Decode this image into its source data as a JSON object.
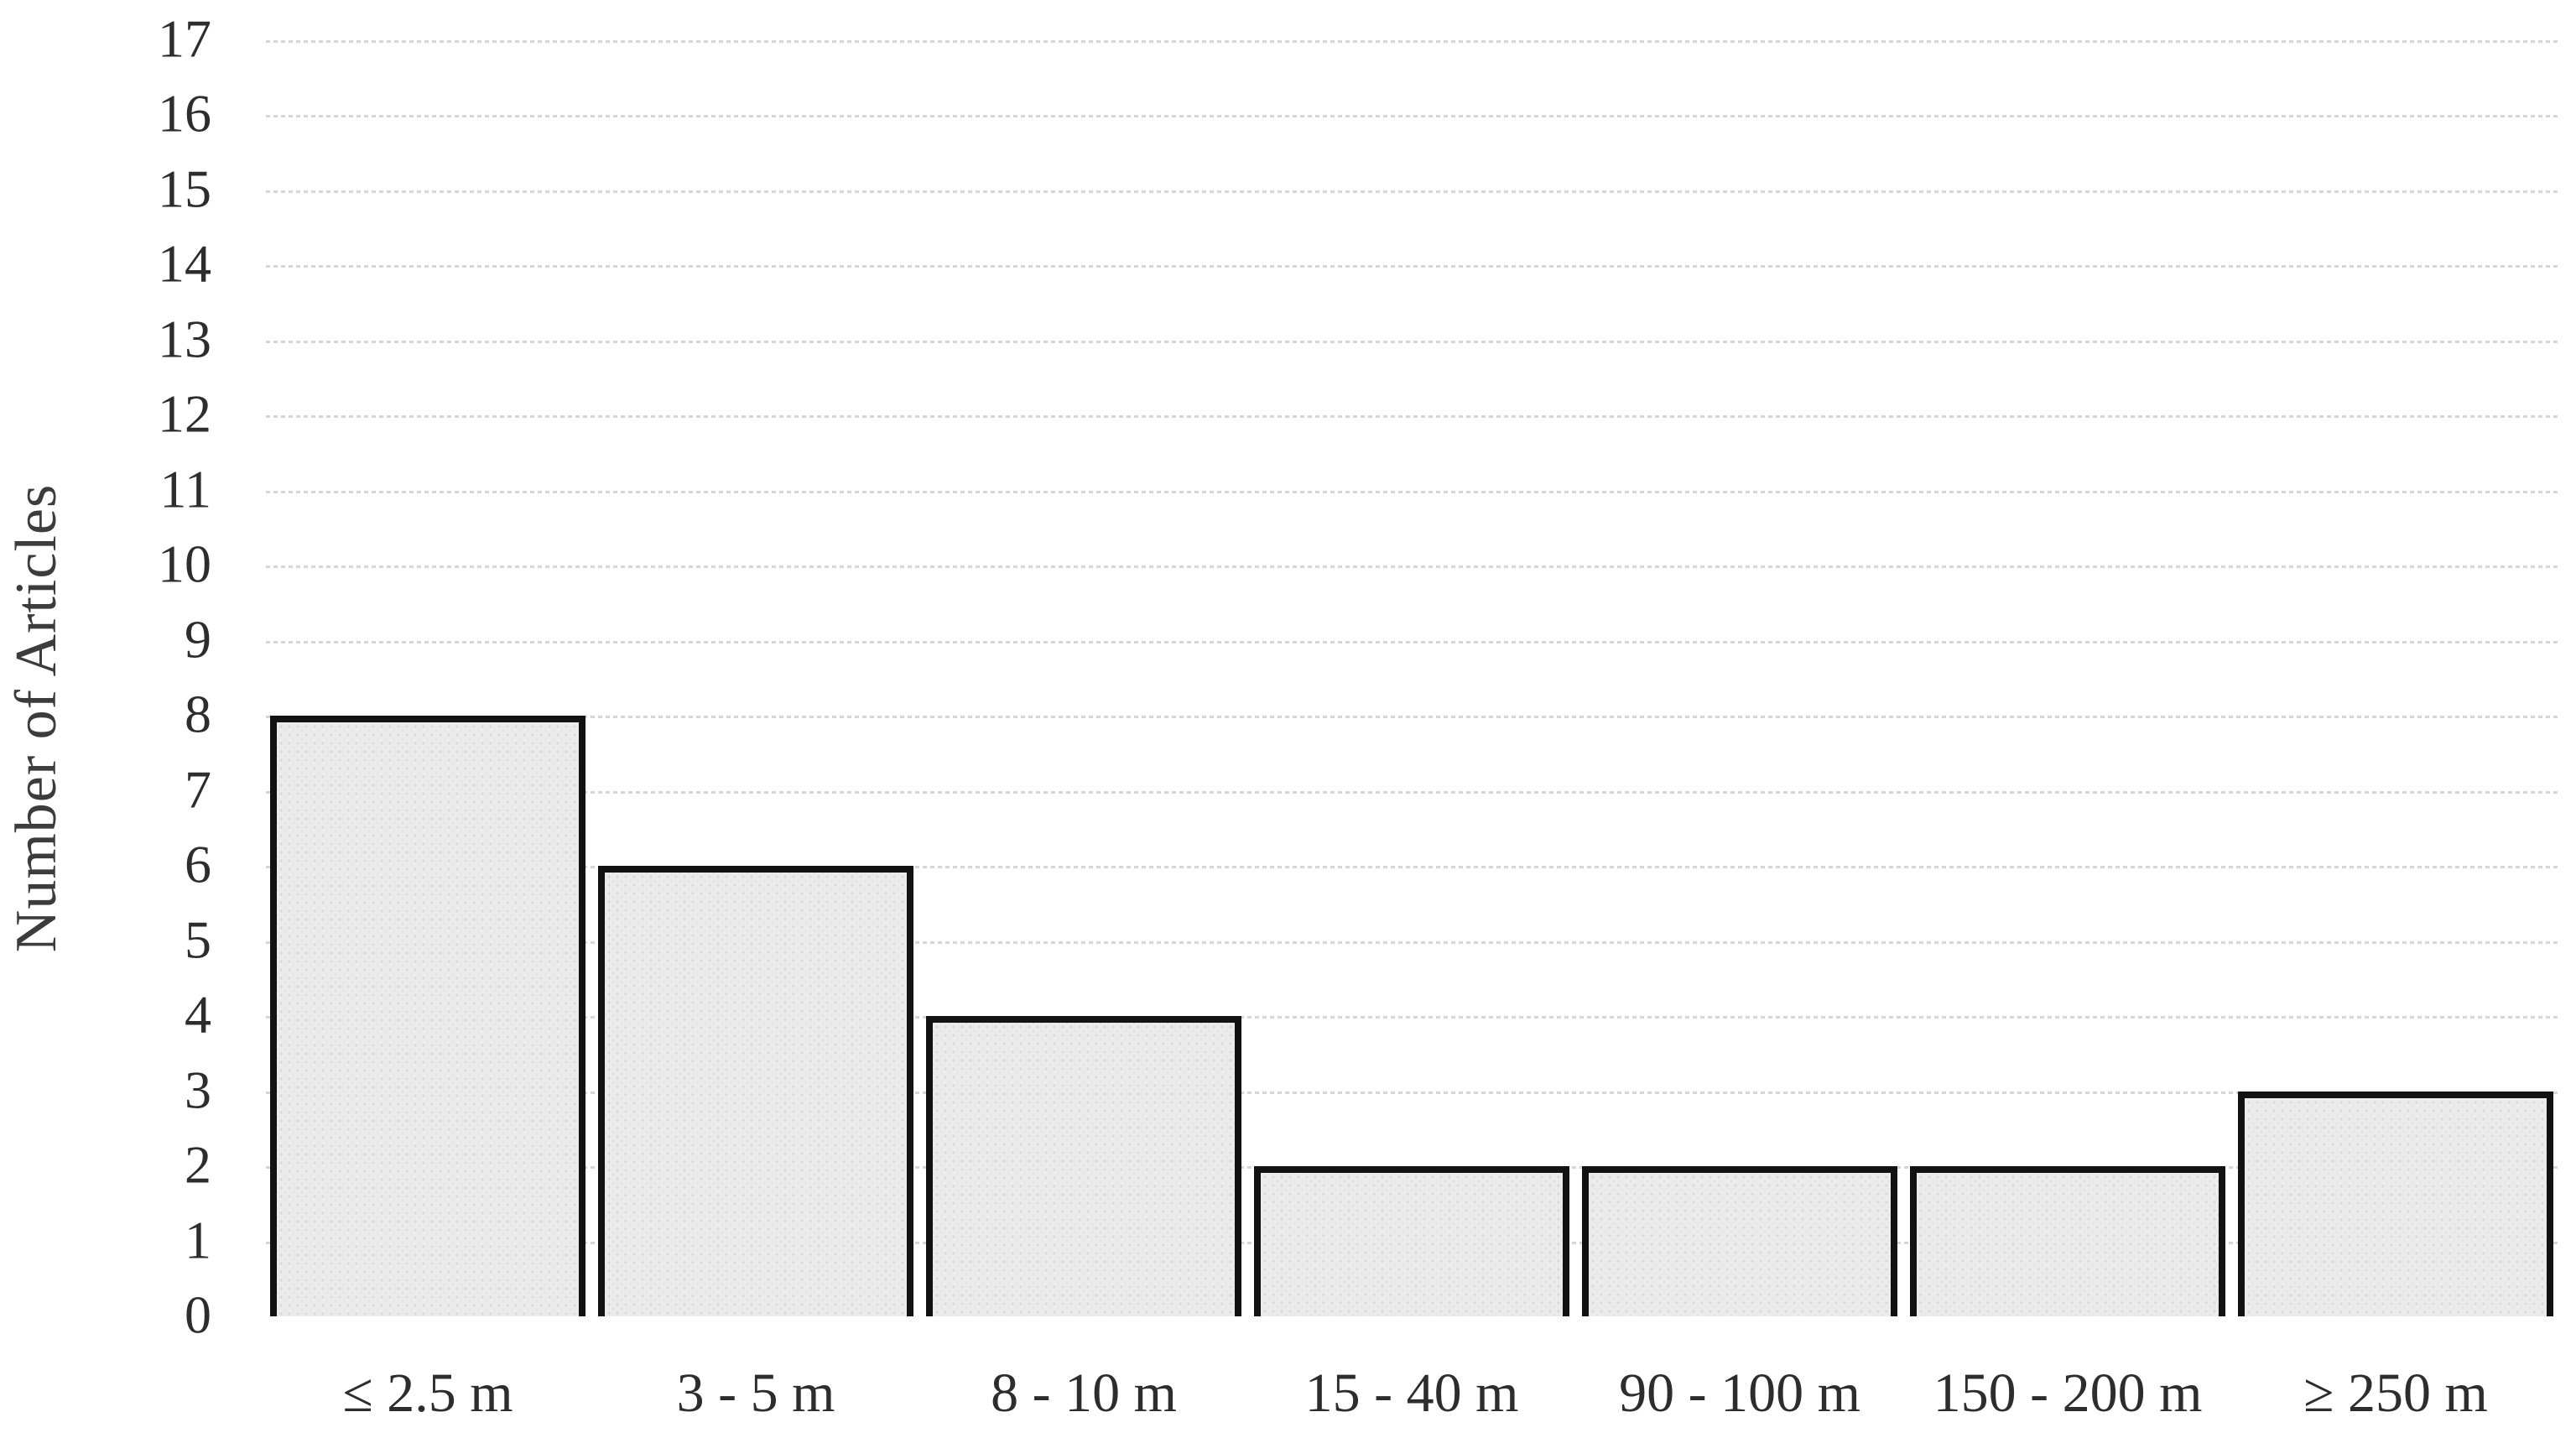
{
  "chart_data": {
    "type": "bar",
    "title": "",
    "xlabel": "",
    "ylabel": "Number of Articles",
    "categories": [
      "≤ 2.5 m",
      "3 - 5 m",
      "8 - 10 m",
      "15 - 40 m",
      "90 - 100 m",
      "150 - 200 m",
      "≥ 250 m"
    ],
    "values": [
      8,
      6,
      4,
      2,
      2,
      2,
      3
    ],
    "ylim": [
      0,
      17
    ],
    "ytick_step": 1,
    "ytick_labels": [
      "0",
      "1",
      "2",
      "3",
      "4",
      "5",
      "6",
      "7",
      "8",
      "9",
      "10",
      "11",
      "12",
      "13",
      "14",
      "15",
      "16",
      "17"
    ],
    "grid": "horizontal-dotted",
    "legend": "none",
    "colors": {
      "bar_fill": "#ebebeb",
      "bar_texture_dot": "#d9d9d9",
      "bar_border": "#121212",
      "gridline": "#d6d6d6",
      "tick_text": "#2d2d2d",
      "axis_title_text": "#3c3c3c",
      "background": "#ffffff"
    }
  }
}
